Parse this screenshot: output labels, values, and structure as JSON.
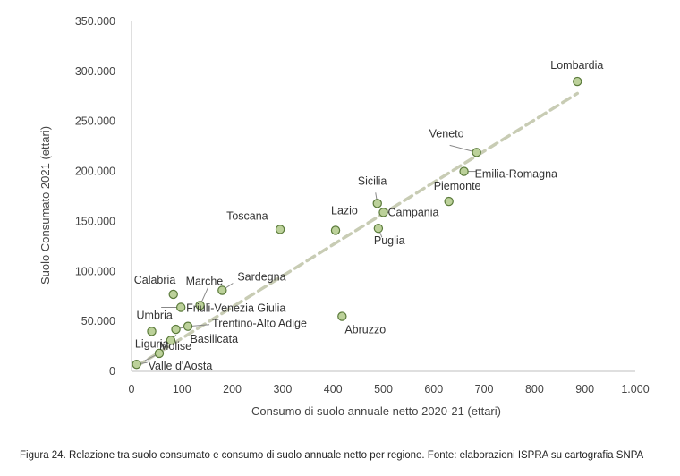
{
  "caption": "Figura 24. Relazione tra suolo consumato e consumo di suolo annuale netto per regione. Fonte: elaborazioni ISPRA su cartografia SNPA",
  "chart_data": {
    "type": "scatter",
    "xlabel": "Consumo di suolo annuale netto 2020-21 (ettari)",
    "ylabel": "Suolo Consumato 2021 (ettari)",
    "xlim": [
      0,
      1000
    ],
    "ylim": [
      0,
      350000
    ],
    "x_ticks": [
      "0",
      "100",
      "200",
      "300",
      "400",
      "500",
      "600",
      "700",
      "800",
      "900",
      "1.000"
    ],
    "y_ticks": [
      "0",
      "50.000",
      "100.000",
      "150.000",
      "200.000",
      "250.000",
      "300.000",
      "350.000"
    ],
    "grid": false,
    "trendline": {
      "style": "dashed",
      "from": [
        10,
        5000
      ],
      "to": [
        885,
        278000
      ]
    },
    "colors": {
      "point_fill": "#bcd19a",
      "point_stroke": "#5a7a3a",
      "trendline": "#c8ccb4",
      "axis": "#bfbfbf"
    },
    "points": [
      {
        "label": "Lombardia",
        "x": 885,
        "y": 290000
      },
      {
        "label": "Veneto",
        "x": 685,
        "y": 219000
      },
      {
        "label": "Emilia-Romagna",
        "x": 660,
        "y": 200000
      },
      {
        "label": "Piemonte",
        "x": 630,
        "y": 170000
      },
      {
        "label": "Sicilia",
        "x": 488,
        "y": 168000
      },
      {
        "label": "Campania",
        "x": 500,
        "y": 159000
      },
      {
        "label": "Puglia",
        "x": 490,
        "y": 143000
      },
      {
        "label": "Lazio",
        "x": 405,
        "y": 141000
      },
      {
        "label": "Toscana",
        "x": 295,
        "y": 142000
      },
      {
        "label": "Abruzzo",
        "x": 418,
        "y": 55000
      },
      {
        "label": "Sardegna",
        "x": 180,
        "y": 81000
      },
      {
        "label": "Marche",
        "x": 136,
        "y": 66000
      },
      {
        "label": "Calabria",
        "x": 83,
        "y": 77000
      },
      {
        "label": "Friuli-Venezia Giulia",
        "x": 98,
        "y": 64000
      },
      {
        "label": "Trentino-Alto Adige",
        "x": 112,
        "y": 45000
      },
      {
        "label": "Basilicata",
        "x": 88,
        "y": 42000
      },
      {
        "label": "Umbria",
        "x": 40,
        "y": 40000
      },
      {
        "label": "Liguria",
        "x": 78,
        "y": 31000
      },
      {
        "label": "Molise",
        "x": 55,
        "y": 18000
      },
      {
        "label": "Valle d'Aosta",
        "x": 10,
        "y": 7000
      }
    ]
  }
}
